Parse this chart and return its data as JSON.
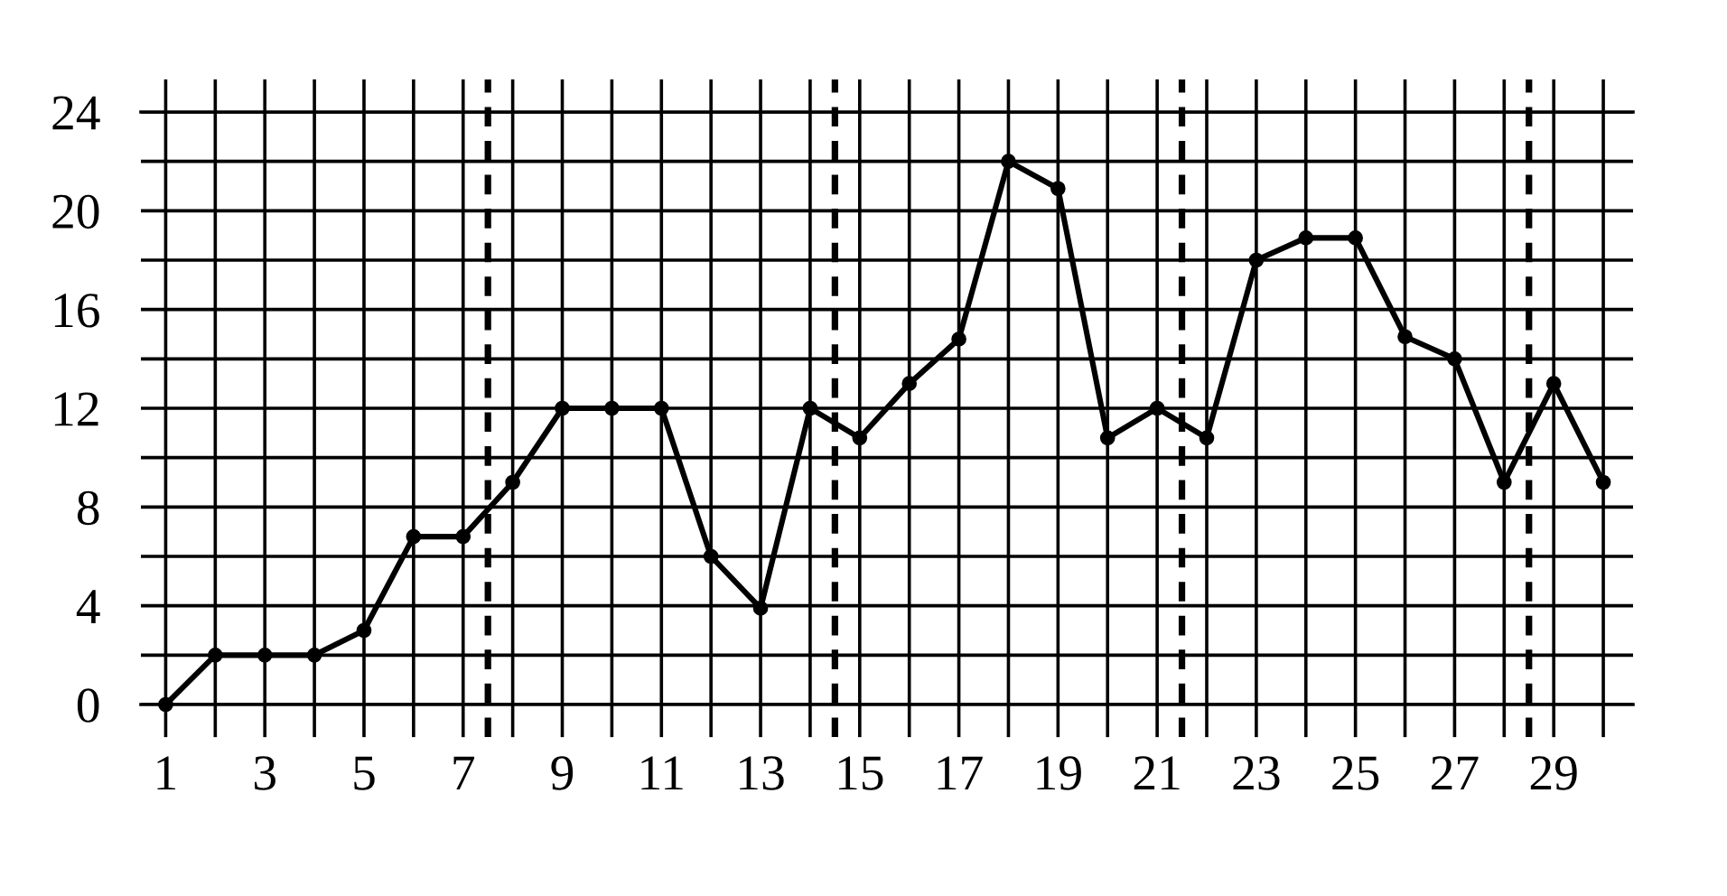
{
  "chart_data": {
    "type": "line",
    "x": [
      1,
      2,
      3,
      4,
      5,
      6,
      7,
      8,
      9,
      10,
      11,
      12,
      13,
      14,
      15,
      16,
      17,
      18,
      19,
      20,
      21,
      22,
      23,
      24,
      25,
      26,
      27,
      28,
      29,
      30
    ],
    "series": [
      {
        "color": "#000000",
        "values": [
          0,
          2,
          2,
          2,
          3,
          6.8,
          6.8,
          9,
          12,
          12,
          12,
          6,
          3.9,
          12,
          10.8,
          13,
          14.8,
          22,
          20.9,
          10.8,
          12,
          10.8,
          18,
          18.9,
          18.9,
          14.9,
          14,
          9,
          13,
          9
        ]
      }
    ],
    "xlim": [
      0.5,
      30.6
    ],
    "ylim": [
      0,
      24
    ],
    "xticks": [
      1,
      {
        "value": 2,
        "label": null
      },
      3,
      {
        "value": 4,
        "label": null
      },
      5,
      {
        "value": 6,
        "label": null
      },
      7,
      {
        "value": 8,
        "label": null
      },
      9,
      {
        "value": 10,
        "label": null
      },
      11,
      {
        "value": 12,
        "label": null
      },
      13,
      {
        "value": 14,
        "label": null
      },
      15,
      {
        "value": 16,
        "label": null
      },
      17,
      {
        "value": 18,
        "label": null
      },
      19,
      {
        "value": 20,
        "label": null
      },
      21,
      {
        "value": 22,
        "label": null
      },
      23,
      {
        "value": 24,
        "label": null
      },
      25,
      {
        "value": 26,
        "label": null
      },
      27,
      {
        "value": 28,
        "label": null
      },
      29,
      {
        "value": 30,
        "label": null
      }
    ],
    "yticks": [
      0,
      {
        "value": 2,
        "label": null
      },
      4,
      {
        "value": 6,
        "label": null
      },
      8,
      {
        "value": 10,
        "label": null
      },
      12,
      {
        "value": 14,
        "label": null
      },
      16,
      {
        "value": 18,
        "label": null
      },
      20,
      {
        "value": 22,
        "label": null
      },
      24
    ],
    "ref_lines": [
      {
        "axis": "x",
        "value": 7.5,
        "color": "#000000",
        "line_style": "dashed"
      },
      {
        "axis": "x",
        "value": 14.5,
        "color": "#000000",
        "line_style": "dashed"
      },
      {
        "axis": "x",
        "value": 21.5,
        "color": "#000000",
        "line_style": "dashed"
      },
      {
        "axis": "x",
        "value": 28.5,
        "color": "#000000",
        "line_style": "dashed"
      }
    ],
    "grid": true,
    "marker": "circle",
    "line_style": "solid"
  }
}
